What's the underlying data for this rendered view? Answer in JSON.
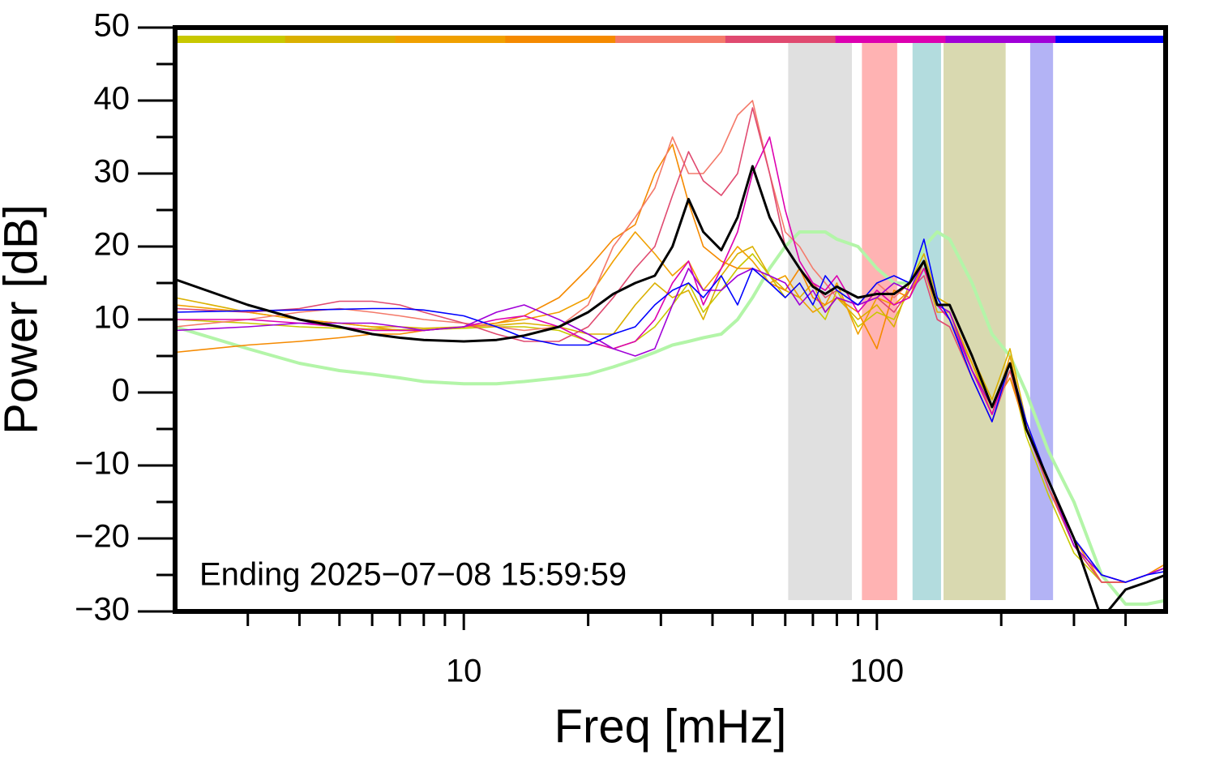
{
  "chart_data": {
    "type": "line",
    "x_label": "Freq [mHz]",
    "y_label": "Power [dB]",
    "annotation": "Ending 2025−07−08 15:59:59",
    "xscale": "log",
    "xlim": [
      2,
      500
    ],
    "xticks": [
      10,
      100
    ],
    "xminorticks": [
      3,
      4,
      5,
      6,
      7,
      8,
      9,
      20,
      30,
      40,
      50,
      60,
      70,
      80,
      90,
      200,
      300,
      400
    ],
    "ylim": [
      -30,
      50
    ],
    "yticks": [
      {
        "value": -30,
        "label": "−30"
      },
      {
        "value": -20,
        "label": "−20"
      },
      {
        "value": -10,
        "label": "−10"
      },
      0,
      10,
      20,
      30,
      40,
      50
    ],
    "yminorticks": [
      -25,
      -15,
      -5,
      5,
      15,
      25,
      35,
      45
    ],
    "bands": [
      {
        "x": [
          61,
          87
        ],
        "color": "#e0e0e0"
      },
      {
        "x": [
          92,
          112
        ],
        "color": "#ffb3b3"
      },
      {
        "x": [
          122,
          143
        ],
        "color": "#b3dcde"
      },
      {
        "x": [
          145,
          205
        ],
        "color": "#d9d9b0"
      },
      {
        "x": [
          235,
          267
        ],
        "color": "#b3b3f5"
      }
    ],
    "x": [
      2,
      3,
      4,
      5,
      6,
      7,
      8,
      10,
      12,
      14,
      17,
      20,
      23,
      26,
      29,
      32,
      35,
      38,
      42,
      46,
      50,
      55,
      60,
      65,
      70,
      75,
      80,
      90,
      100,
      110,
      120,
      130,
      140,
      150,
      170,
      190,
      210,
      230,
      260,
      300,
      350,
      400,
      450,
      500
    ],
    "series": [
      {
        "color": "#b3f5a8",
        "width": 4,
        "values": [
          9,
          6,
          4,
          3,
          2.5,
          2,
          1.5,
          1.2,
          1.2,
          1.5,
          2,
          2.5,
          3.5,
          4.5,
          5.5,
          6.5,
          7,
          7.5,
          8,
          10,
          13,
          17,
          20,
          22,
          22,
          22,
          21,
          20,
          17,
          15,
          15,
          20,
          22,
          21,
          15,
          8,
          5,
          0,
          -8,
          -15,
          -25,
          -29,
          -29,
          -28.5
        ]
      },
      {
        "color": "#c8c800",
        "width": 1.6,
        "values": [
          10,
          9.5,
          9,
          8.8,
          8.7,
          8.6,
          8.6,
          8.8,
          9,
          9,
          8.5,
          7,
          6,
          7,
          9,
          12,
          15,
          11,
          14,
          17,
          19,
          16,
          13,
          15,
          12,
          10,
          14,
          9,
          11,
          10,
          14,
          17,
          12,
          10,
          4,
          -2,
          3,
          -6,
          -14,
          -22,
          -26,
          -26,
          -25,
          -24
        ]
      },
      {
        "color": "#dab000",
        "width": 1.6,
        "values": [
          13,
          11,
          10,
          9.5,
          9,
          9,
          8.8,
          9,
          9.2,
          9.5,
          9,
          8,
          8,
          12,
          15,
          13,
          14,
          10,
          16,
          19,
          20,
          16,
          14,
          13,
          15,
          11,
          13,
          10,
          12,
          9,
          15,
          19,
          13,
          12,
          5,
          -1,
          6,
          -4,
          -13,
          -21,
          -25,
          -26,
          -25,
          -24
        ]
      },
      {
        "color": "#f0a000",
        "width": 1.6,
        "values": [
          12,
          11,
          10,
          9.5,
          9,
          8.5,
          8.5,
          9,
          9.5,
          10,
          11,
          13,
          18,
          22,
          19,
          16,
          18,
          14,
          17,
          20,
          18,
          15,
          16,
          13,
          11,
          12,
          15,
          8,
          13,
          12,
          14,
          17,
          11,
          11,
          4,
          -3,
          5,
          -5,
          -12,
          -21,
          -26,
          -26,
          -25,
          -24
        ]
      },
      {
        "color": "#f58a00",
        "width": 1.6,
        "values": [
          5.5,
          6.5,
          7,
          7.5,
          8,
          8,
          8.5,
          9,
          9.5,
          10.5,
          13,
          17,
          21,
          23,
          30,
          34,
          26,
          20,
          18,
          17,
          17,
          15,
          14,
          17,
          13,
          12,
          13,
          11,
          6,
          14,
          13,
          18,
          12,
          10,
          3,
          -2,
          2,
          -5,
          -13,
          -20,
          -26,
          -26,
          -25,
          -23.5
        ]
      },
      {
        "color": "#f47a6a",
        "width": 1.6,
        "values": [
          9,
          10,
          11,
          11.5,
          11,
          10.5,
          10,
          9.5,
          9,
          8.5,
          9,
          12,
          20,
          24,
          28,
          35,
          30,
          30,
          33,
          38,
          40,
          30,
          22,
          20,
          17,
          15,
          13,
          12,
          15,
          13,
          15,
          18,
          12,
          11,
          3,
          -3,
          4,
          -4,
          -12,
          -20,
          -25,
          -26,
          -25,
          -24
        ]
      },
      {
        "color": "#e04a70",
        "width": 1.6,
        "values": [
          11.5,
          11,
          11.5,
          12.5,
          12.5,
          12,
          11,
          9.5,
          8,
          7,
          7,
          9,
          13,
          17,
          20,
          27,
          33,
          29,
          27,
          30,
          39,
          30,
          20,
          17,
          15,
          13,
          14,
          12,
          13,
          11,
          14,
          16,
          10,
          9,
          2,
          -4,
          3,
          -5,
          -13,
          -21,
          -26,
          -26,
          -25,
          -24
        ]
      },
      {
        "color": "#dd00b0",
        "width": 1.6,
        "values": [
          10,
          10,
          9.5,
          9,
          8.5,
          8.5,
          8.5,
          9,
          10,
          10.5,
          9,
          7,
          6,
          7,
          10,
          15,
          18,
          12,
          17,
          22,
          30,
          35,
          25,
          18,
          15,
          14,
          16,
          11,
          14,
          12,
          13,
          17,
          12,
          10,
          3,
          -3,
          4,
          -5,
          -12,
          -21,
          -25,
          -26,
          -25,
          -24
        ]
      },
      {
        "color": "#a000d8",
        "width": 1.6,
        "values": [
          8.5,
          9,
          9.5,
          9.5,
          9.5,
          9,
          8.5,
          9,
          11,
          12,
          10,
          8,
          6,
          5,
          6,
          12,
          17,
          14,
          14,
          16,
          17,
          16,
          15,
          12,
          14,
          11,
          13,
          12,
          13,
          15,
          14,
          18,
          12,
          11,
          3,
          -2,
          4,
          -5,
          -12,
          -21,
          -25,
          -26,
          -25,
          -24
        ]
      },
      {
        "color": "#0000ff",
        "width": 1.6,
        "values": [
          11,
          11.2,
          11.3,
          11.4,
          11.5,
          11.5,
          11.3,
          10.5,
          9,
          7.5,
          6.5,
          6.5,
          8,
          9,
          12,
          14,
          15,
          13,
          16,
          12,
          17,
          15,
          13,
          15,
          12,
          16,
          14,
          12,
          15,
          16,
          15,
          21,
          13,
          10,
          2,
          -4,
          4,
          -4,
          -12,
          -20,
          -25,
          -26,
          -25,
          -24.5
        ]
      },
      {
        "color": "#000000",
        "width": 3,
        "values": [
          15.5,
          12,
          10,
          9,
          8,
          7.5,
          7.2,
          7,
          7.2,
          7.8,
          9,
          11,
          13.5,
          15,
          16,
          20,
          26.5,
          22,
          19.5,
          24,
          31,
          24,
          20,
          17,
          14.5,
          13.5,
          14.5,
          13,
          13.5,
          13.5,
          15,
          18,
          12,
          12,
          5,
          -2,
          4,
          -5,
          -12,
          -20,
          -31,
          -27,
          -26,
          -25
        ]
      }
    ],
    "key_colors": [
      "#c8c800",
      "#dab000",
      "#f0a000",
      "#f58a00",
      "#f47a6a",
      "#e04a70",
      "#dd00b0",
      "#a000d8",
      "#0000ff"
    ]
  }
}
